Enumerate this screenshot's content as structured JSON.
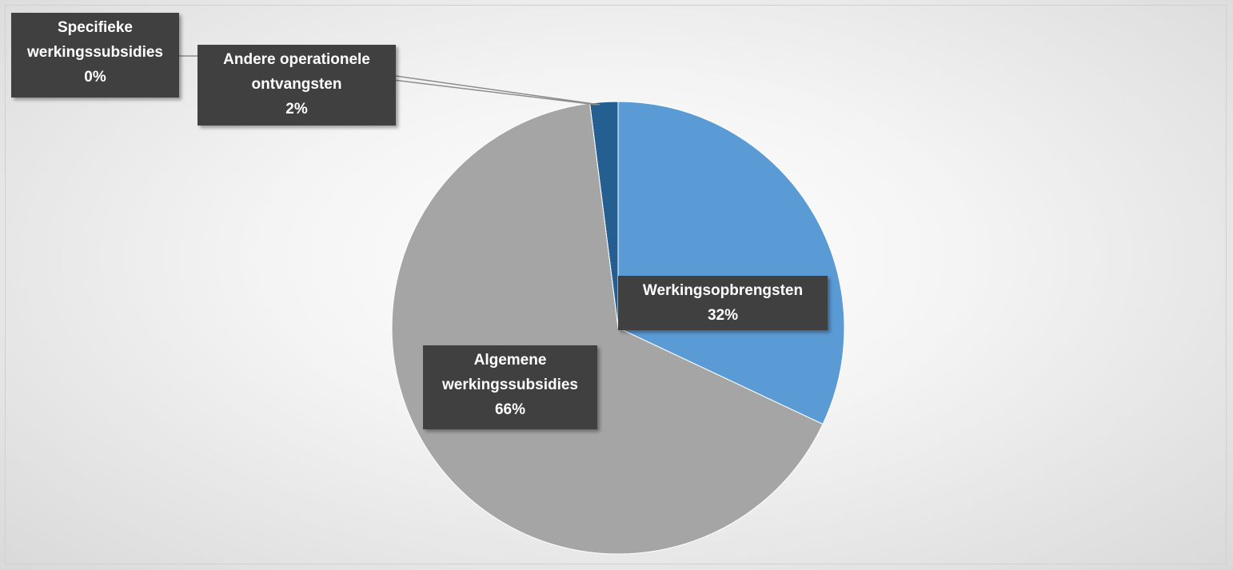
{
  "chart_data": {
    "type": "pie",
    "categories": [
      "Werkingsopbrengsten",
      "Algemene werkingssubsidies",
      "Specifieke werkingssubsidies",
      "Andere operationele ontvangsten"
    ],
    "values": [
      32,
      66,
      0,
      2
    ],
    "value_labels": [
      "32%",
      "66%",
      "0%",
      "2%"
    ],
    "colors": [
      "#5b9bd5",
      "#a5a5a5",
      "#4472c4",
      "#255e91"
    ]
  }
}
